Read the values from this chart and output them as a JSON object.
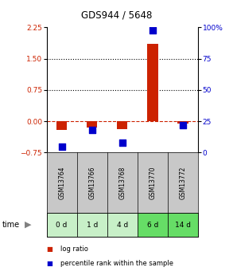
{
  "title": "GDS944 / 5648",
  "samples": [
    "GSM13764",
    "GSM13766",
    "GSM13768",
    "GSM13770",
    "GSM13772"
  ],
  "time_labels": [
    "0 d",
    "1 d",
    "4 d",
    "6 d",
    "14 d"
  ],
  "log_ratio": [
    -0.2,
    -0.15,
    -0.18,
    1.85,
    -0.05
  ],
  "percentile_rank": [
    5,
    18,
    8,
    98,
    22
  ],
  "ylim_left": [
    -0.75,
    2.25
  ],
  "ylim_right": [
    0,
    100
  ],
  "left_ticks": [
    -0.75,
    0,
    0.75,
    1.5,
    2.25
  ],
  "right_ticks": [
    0,
    25,
    50,
    75,
    100
  ],
  "hline_y": [
    1.5,
    0.75
  ],
  "bar_color": "#cc2200",
  "dot_color": "#0000cc",
  "zero_line_color": "#cc2200",
  "bar_width": 0.35,
  "dot_size": 35,
  "sample_bg_color": "#c8c8c8",
  "time_bg_colors": [
    "#c8f0c8",
    "#c8f0c8",
    "#c8f0c8",
    "#66dd66",
    "#66dd66"
  ],
  "legend_bar_label": "log ratio",
  "legend_dot_label": "percentile rank within the sample",
  "time_label": "time"
}
